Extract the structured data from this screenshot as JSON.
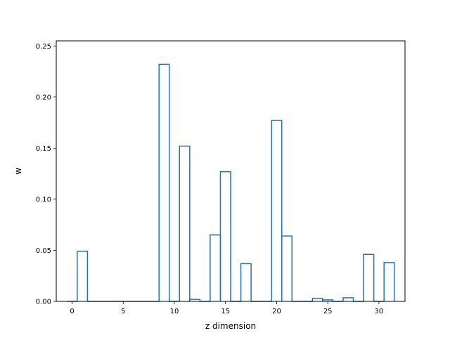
{
  "chart_data": {
    "type": "bar",
    "style": "step-outline",
    "title": "",
    "xlabel": "z dimension",
    "ylabel": "w",
    "xlim": [
      -1.55,
      32.55
    ],
    "ylim": [
      0,
      0.255
    ],
    "xticks": [
      0,
      5,
      10,
      15,
      20,
      25,
      30
    ],
    "yticks": [
      0.0,
      0.05,
      0.1,
      0.15,
      0.2,
      0.25
    ],
    "ytick_labels": [
      "0.00",
      "0.05",
      "0.10",
      "0.15",
      "0.20",
      "0.25"
    ],
    "grid": false,
    "x": [
      0,
      1,
      2,
      3,
      4,
      5,
      6,
      7,
      8,
      9,
      10,
      11,
      12,
      13,
      14,
      15,
      16,
      17,
      18,
      19,
      20,
      21,
      22,
      23,
      24,
      25,
      26,
      27,
      28,
      29,
      30,
      31
    ],
    "values": [
      0.0,
      0.049,
      0.0,
      0.0,
      0.0,
      0.0,
      0.0,
      0.0,
      0.0,
      0.232,
      0.0,
      0.152,
      0.002,
      0.0,
      0.065,
      0.127,
      0.0,
      0.037,
      0.0,
      0.0,
      0.177,
      0.064,
      0.0,
      0.0,
      0.003,
      0.0015,
      0.0,
      0.0035,
      0.0,
      0.046,
      0.0,
      0.038
    ],
    "color": "#1f77b4"
  }
}
